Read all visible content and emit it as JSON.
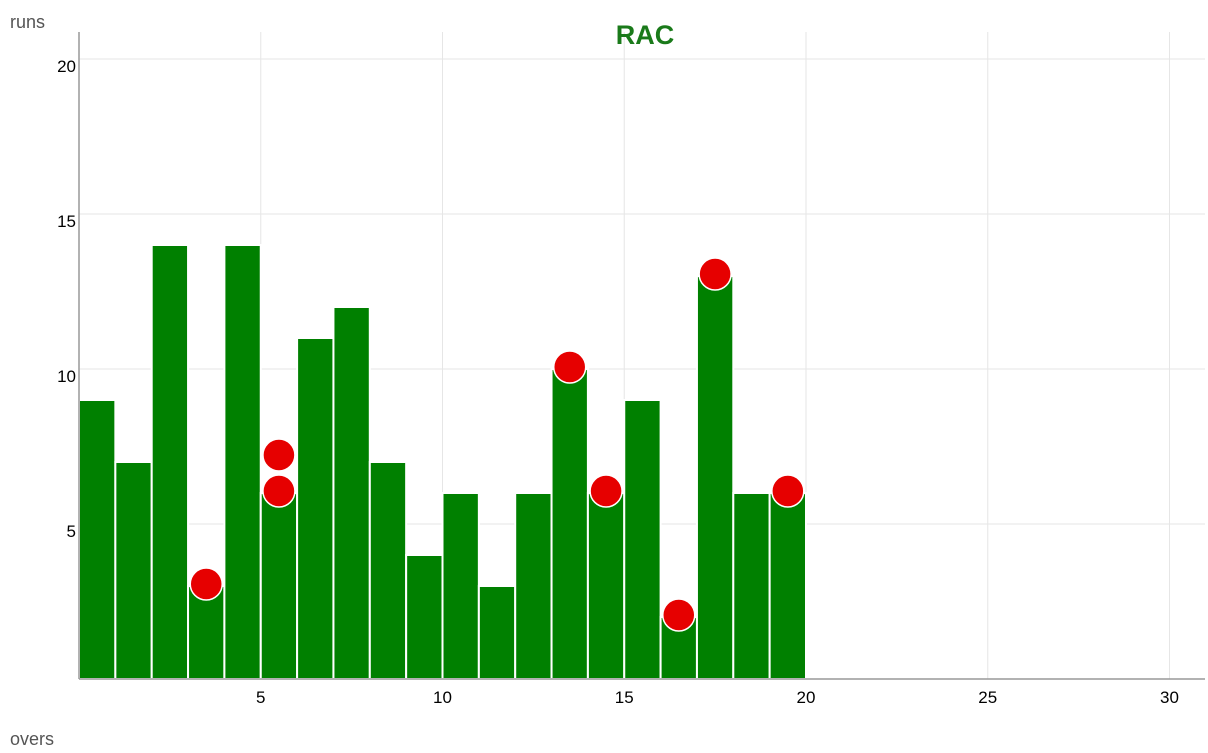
{
  "chart_data": {
    "type": "bar",
    "title": "RAC",
    "xlabel": "overs",
    "ylabel": "runs",
    "xlim": [
      0,
      31
    ],
    "ylim": [
      0,
      20.5
    ],
    "xticks": [
      5,
      10,
      15,
      20,
      25,
      30
    ],
    "yticks": [
      5,
      10,
      15,
      20
    ],
    "grid": true,
    "x": [
      1,
      2,
      3,
      4,
      5,
      6,
      7,
      8,
      9,
      10,
      11,
      12,
      13,
      14,
      15,
      16,
      17,
      18,
      19,
      20
    ],
    "values": [
      9,
      7,
      14,
      3,
      14,
      6,
      11,
      12,
      7,
      4,
      6,
      3,
      6,
      10,
      6,
      9,
      2,
      13,
      6,
      6
    ],
    "wickets": [
      {
        "over": 4,
        "count": 1
      },
      {
        "over": 6,
        "count": 2
      },
      {
        "over": 14,
        "count": 1
      },
      {
        "over": 15,
        "count": 1
      },
      {
        "over": 17,
        "count": 1
      },
      {
        "over": 18,
        "count": 1
      },
      {
        "over": 20,
        "count": 1
      }
    ],
    "colors": {
      "bar": "#008000",
      "bar_border": "#ffffff",
      "wicket": "#e60000",
      "title": "#1a7a1a",
      "grid": "#e6e6e6",
      "axis": "#999999"
    }
  }
}
